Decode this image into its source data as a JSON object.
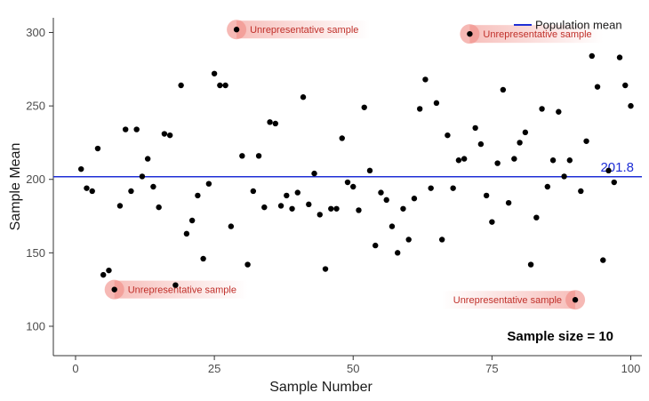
{
  "chart_data": {
    "type": "scatter",
    "title": "",
    "xlabel": "Sample Number",
    "ylabel": "Sample Mean",
    "xlim": [
      -4,
      102
    ],
    "ylim": [
      80,
      310
    ],
    "xticks": [
      0,
      25,
      50,
      75,
      100
    ],
    "yticks": [
      100,
      150,
      200,
      250,
      300
    ],
    "grid": false,
    "legend": {
      "position": "top-right",
      "entries": [
        {
          "label": "Population mean",
          "color": "#1f2fd6"
        }
      ]
    },
    "series": [
      {
        "color": "#000000",
        "x": [
          1,
          2,
          3,
          4,
          5,
          6,
          7,
          8,
          9,
          10,
          11,
          12,
          13,
          14,
          15,
          16,
          17,
          18,
          19,
          20,
          21,
          22,
          23,
          24,
          25,
          26,
          27,
          28,
          29,
          30,
          31,
          32,
          33,
          34,
          35,
          36,
          37,
          38,
          39,
          40,
          41,
          42,
          43,
          44,
          45,
          46,
          47,
          48,
          49,
          50,
          51,
          52,
          53,
          54,
          55,
          56,
          57,
          58,
          59,
          60,
          61,
          62,
          63,
          64,
          65,
          66,
          67,
          68,
          69,
          70,
          71,
          72,
          73,
          74,
          75,
          76,
          77,
          78,
          79,
          80,
          81,
          82,
          83,
          84,
          85,
          86,
          87,
          88,
          89,
          90,
          91,
          92,
          93,
          94,
          95,
          96,
          97,
          98,
          99,
          100
        ],
        "y": [
          207,
          194,
          192,
          221,
          135,
          138,
          125,
          182,
          234,
          192,
          234,
          202,
          214,
          195,
          181,
          231,
          230,
          128,
          264,
          163,
          172,
          189,
          146,
          197,
          272,
          264,
          264,
          168,
          302,
          216,
          142,
          192,
          216,
          181,
          239,
          238,
          182,
          189,
          180,
          191,
          256,
          183,
          204,
          176,
          139,
          180,
          180,
          228,
          198,
          195,
          179,
          249,
          206,
          155,
          191,
          186,
          168,
          150,
          180,
          159,
          187,
          248,
          268,
          194,
          252,
          159,
          230,
          194,
          213,
          214,
          299,
          235,
          224,
          189,
          171,
          211,
          261,
          184,
          214,
          225,
          232,
          142,
          174,
          248,
          195,
          213,
          246,
          202,
          213,
          118,
          192,
          226,
          284,
          263,
          145,
          206,
          198,
          283,
          264,
          250
        ]
      }
    ],
    "reference_lines": [
      {
        "orientation": "horizontal",
        "y": 201.8,
        "name": "Population mean",
        "label": "201.8",
        "color": "#1f2fd6"
      }
    ],
    "annotations": [
      {
        "text": "Unrepresentative sample",
        "x": 29,
        "y": 302,
        "side": "right"
      },
      {
        "text": "Unrepresentative sample",
        "x": 71,
        "y": 299,
        "side": "right"
      },
      {
        "text": "Unrepresentative sample",
        "x": 7,
        "y": 125,
        "side": "right"
      },
      {
        "text": "Unrepresentative sample",
        "x": 90,
        "y": 118,
        "side": "left"
      }
    ],
    "note": "Sample size = 10"
  }
}
